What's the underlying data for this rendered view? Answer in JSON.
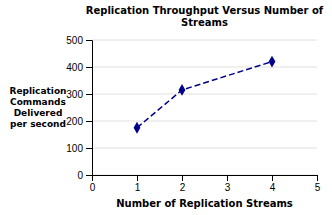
{
  "chart_data": {
    "type": "line",
    "title": "Replication Throughput Versus Number of\nStreams",
    "xlabel": "Number of Replication Streams",
    "ylabel": "Replication\nCommands\nDelivered\nper second",
    "x": [
      1,
      2,
      4
    ],
    "values": [
      175,
      315,
      420
    ],
    "color": "#00008B",
    "marker": "diamond",
    "line_style": "dashed",
    "xlim": [
      0,
      5
    ],
    "ylim": [
      0,
      500
    ],
    "xticks": [
      0,
      1,
      2,
      3,
      4,
      5
    ],
    "yticks": [
      0,
      100,
      200,
      300,
      400,
      500
    ],
    "grid": true
  }
}
